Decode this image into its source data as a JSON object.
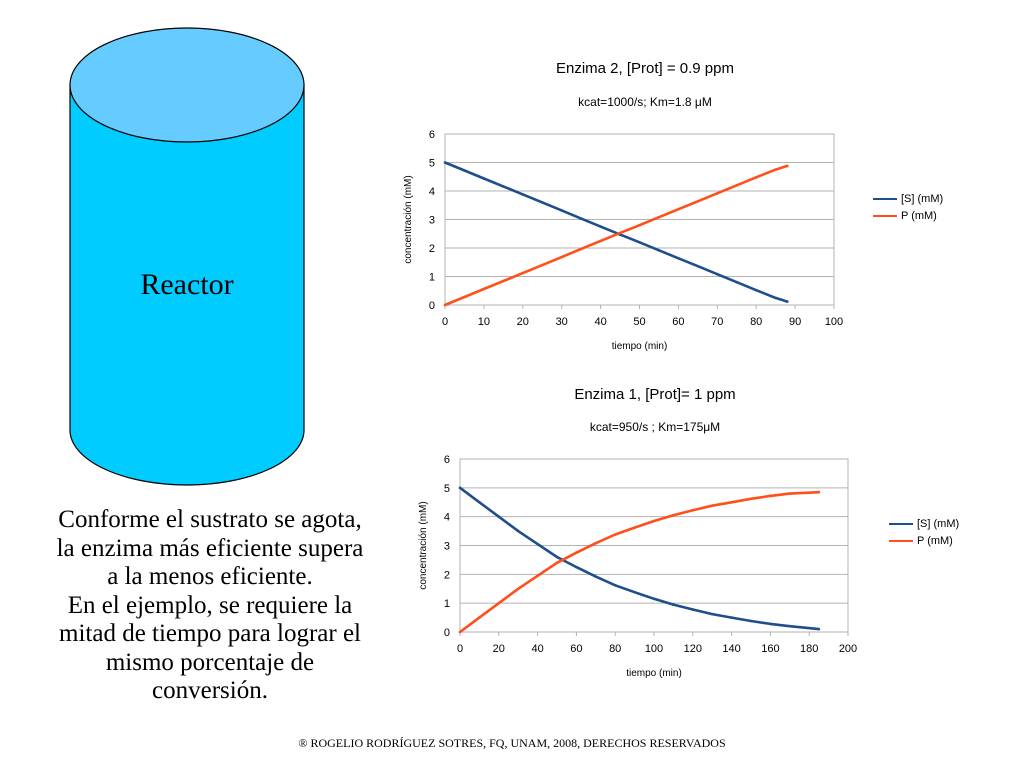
{
  "reactor": {
    "label": "Reactor",
    "colors": {
      "body": "#00CCFF",
      "top": "#66CCFF",
      "stroke": "#000000"
    }
  },
  "conclusion": {
    "lines": [
      "Conforme el sustrato se agota,",
      "la enzima más eficiente supera",
      "a la menos eficiente.",
      "En el ejemplo, se requiere la",
      "mitad de tiempo para lograr el",
      "mismo porcentaje de",
      "conversión."
    ]
  },
  "footer": "® ROGELIO RODRÍGUEZ SOTRES, FQ, UNAM, 2008, DERECHOS RESERVADOS",
  "chart_data": [
    {
      "type": "line",
      "title": "Enzima 2, [Prot] = 0.9 ppm",
      "subtitle": "kcat=1000/s; Km=1.8 μM",
      "xlabel": "tiempo (min)",
      "ylabel": "concentración (mM)",
      "xlim": [
        0,
        100
      ],
      "ylim": [
        0,
        6
      ],
      "xticks": [
        "0",
        "10",
        "20",
        "30",
        "40",
        "50",
        "60",
        "70",
        "80",
        "90",
        "100"
      ],
      "yticks": [
        "0",
        "1",
        "2",
        "3",
        "4",
        "5",
        "6"
      ],
      "grid": true,
      "legend_position": "right",
      "series": [
        {
          "name": "[S] (mM)",
          "color": "#1F4E8C",
          "x": [
            0,
            5,
            10,
            15,
            20,
            25,
            30,
            35,
            40,
            45,
            50,
            55,
            60,
            65,
            70,
            75,
            80,
            85,
            88
          ],
          "y": [
            5.0,
            4.72,
            4.44,
            4.16,
            3.88,
            3.6,
            3.32,
            3.03,
            2.75,
            2.47,
            2.2,
            1.92,
            1.64,
            1.36,
            1.08,
            0.8,
            0.52,
            0.25,
            0.12
          ]
        },
        {
          "name": "P (mM)",
          "color": "#FF4F1A",
          "x": [
            0,
            5,
            10,
            15,
            20,
            25,
            30,
            35,
            40,
            45,
            50,
            55,
            60,
            65,
            70,
            75,
            80,
            85,
            88
          ],
          "y": [
            0.0,
            0.28,
            0.56,
            0.84,
            1.12,
            1.4,
            1.68,
            1.97,
            2.25,
            2.53,
            2.8,
            3.08,
            3.36,
            3.64,
            3.92,
            4.2,
            4.48,
            4.75,
            4.88
          ]
        }
      ]
    },
    {
      "type": "line",
      "title": "Enzima 1, [Prot]= 1 ppm",
      "subtitle": "kcat=950/s ; Km=175μM",
      "xlabel": "tiempo (min)",
      "ylabel": "concentración (mM)",
      "xlim": [
        0,
        200
      ],
      "ylim": [
        0,
        6
      ],
      "xticks": [
        "0",
        "20",
        "40",
        "60",
        "80",
        "100",
        "120",
        "140",
        "160",
        "180",
        "200"
      ],
      "yticks": [
        "0",
        "1",
        "2",
        "3",
        "4",
        "5",
        "6"
      ],
      "grid": true,
      "legend_position": "right",
      "series": [
        {
          "name": "[S] (mM)",
          "color": "#1F4E8C",
          "x": [
            0,
            10,
            20,
            30,
            40,
            50,
            60,
            70,
            80,
            90,
            100,
            110,
            120,
            130,
            140,
            150,
            160,
            170,
            185
          ],
          "y": [
            5.0,
            4.5,
            4.0,
            3.5,
            3.05,
            2.6,
            2.25,
            1.92,
            1.62,
            1.38,
            1.15,
            0.95,
            0.78,
            0.62,
            0.5,
            0.38,
            0.28,
            0.2,
            0.1
          ]
        },
        {
          "name": "P (mM)",
          "color": "#FF4F1A",
          "x": [
            0,
            10,
            20,
            30,
            40,
            50,
            60,
            70,
            80,
            90,
            100,
            110,
            120,
            130,
            140,
            150,
            160,
            170,
            185
          ],
          "y": [
            0.0,
            0.5,
            1.0,
            1.5,
            1.95,
            2.4,
            2.75,
            3.08,
            3.38,
            3.62,
            3.85,
            4.05,
            4.22,
            4.38,
            4.5,
            4.62,
            4.72,
            4.8,
            4.85
          ]
        }
      ]
    }
  ]
}
